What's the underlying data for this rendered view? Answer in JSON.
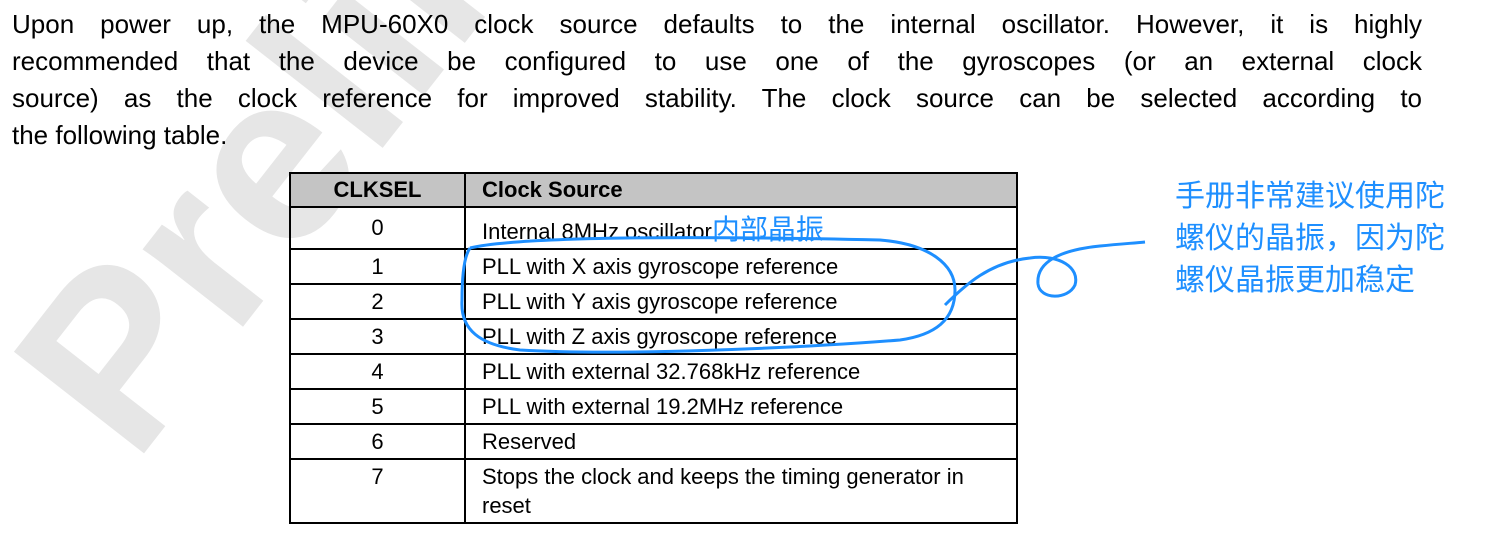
{
  "watermark": "Preliminary",
  "paragraph": [
    "Upon power up, the MPU-60X0 clock source defaults to the internal oscillator. However, it is highly",
    "recommended that the device be configured to use one of the gyroscopes (or an external clock",
    "source) as the clock reference for improved stability. The clock source can be selected according to",
    "the following table."
  ],
  "table": {
    "header": [
      "CLKSEL",
      "Clock Source"
    ],
    "rows": [
      [
        "0",
        "Internal 8MHz oscillator"
      ],
      [
        "1",
        "PLL with X axis gyroscope reference"
      ],
      [
        "2",
        "PLL with Y axis gyroscope reference"
      ],
      [
        "3",
        "PLL with Z axis gyroscope reference"
      ],
      [
        "4",
        "PLL with external 32.768kHz reference"
      ],
      [
        "5",
        "PLL with external 19.2MHz reference"
      ],
      [
        "6",
        "Reserved"
      ],
      [
        "7",
        "Stops the clock and keeps the timing generator in reset"
      ]
    ]
  },
  "annotations": {
    "inline_note": "内部晶振",
    "side_note": [
      "手册非常建议使用陀",
      "螺仪的晶振，因为陀",
      "螺仪晶振更加稳定"
    ]
  }
}
